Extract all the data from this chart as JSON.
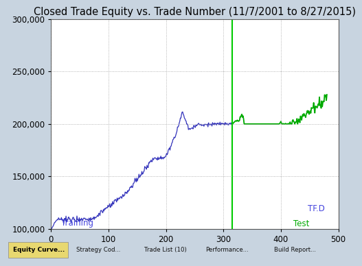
{
  "title": "Closed Trade Equity vs. Trade Number (11/7/2001 to 8/27/2015)",
  "xlim": [
    0,
    500
  ],
  "ylim": [
    100000,
    300000
  ],
  "yticks": [
    100000,
    150000,
    200000,
    250000,
    300000
  ],
  "xticks": [
    0,
    100,
    200,
    300,
    400,
    500
  ],
  "split_trade": 315,
  "vline_color": "#00cc00",
  "train_color": "#3333bb",
  "test_color": "#00aa00",
  "bg_color": "#c8d4e0",
  "plot_bg_color": "#ffffff",
  "grid_color": "#888888",
  "label_training_color": "#4444dd",
  "label_test_color": "#00aa00",
  "label_tfd_color": "#4444dd",
  "title_fontsize": 10.5,
  "tick_fontsize": 8.5,
  "annotation_fontsize": 8.5,
  "taskbar_bg": "#b0b8c8",
  "taskbar_highlight": "#e8d870",
  "taskbar_items": [
    "Equity Curve...",
    "Strategy Cod...",
    "Trade List (10)",
    "Performance...",
    "Build Report..."
  ]
}
